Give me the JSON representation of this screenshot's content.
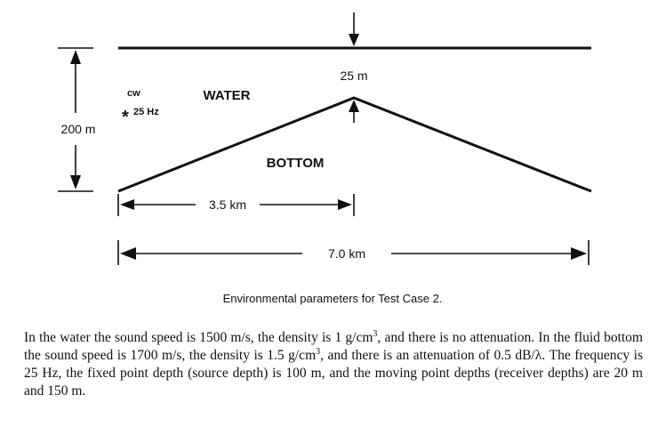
{
  "diagram": {
    "depth_label": "200 m",
    "source_cw": "cw",
    "source_freq": "25 Hz",
    "water_label": "WATER",
    "bottom_label": "BOTTOM",
    "apex_depth_label": "25 m",
    "half_range_label": "3.5 km",
    "full_range_label": "7.0 km"
  },
  "caption": "Environmental parameters for Test Case 2.",
  "paragraph": [
    "In the water the sound speed is 1500 m/s, the density is 1 g/cm",
    "3",
    ", and there is no attenuation. In the fluid bottom the sound speed is 1700 m/s, the density is 1.5 g/cm",
    "3",
    ", and there is an attenuation of 0.5 dB/λ. The frequency is 25 Hz, the fixed point depth (source depth) is 100 m, and the moving point depths (receiver depths) are 20 m and 150 m."
  ]
}
